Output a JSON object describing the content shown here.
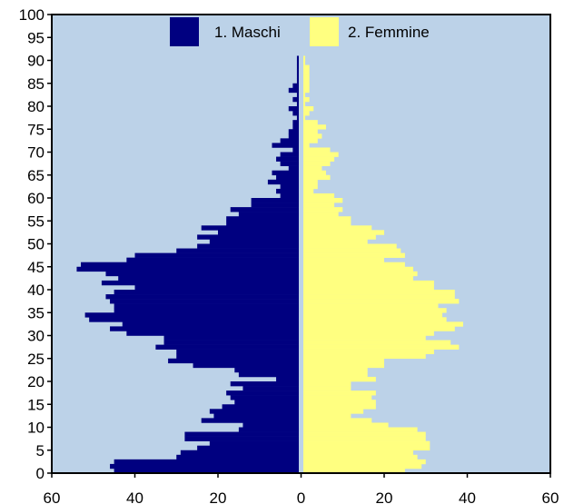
{
  "chart_data": {
    "type": "bar",
    "orientation": "horizontal",
    "subtype": "population-pyramid",
    "title": "",
    "xlabel": "",
    "ylabel": "",
    "xlim": [
      -60,
      60
    ],
    "ylim": [
      0,
      100
    ],
    "x_ticks": [
      -60,
      -40,
      -20,
      0,
      20,
      40,
      60
    ],
    "x_tick_labels": [
      "60",
      "40",
      "20",
      "0",
      "20",
      "40",
      "60"
    ],
    "y_ticks": [
      0,
      5,
      10,
      15,
      20,
      25,
      30,
      35,
      40,
      45,
      50,
      55,
      60,
      65,
      70,
      75,
      80,
      85,
      90,
      95,
      100
    ],
    "y_tick_labels": [
      "0",
      "5",
      "10",
      "15",
      "20",
      "25",
      "30",
      "35",
      "40",
      "45",
      "50",
      "55",
      "60",
      "65",
      "70",
      "75",
      "80",
      "85",
      "90",
      "95",
      "100"
    ],
    "grid": false,
    "legend": "top-center",
    "background_color": "#bcd2e8",
    "categories": [
      0,
      1,
      2,
      3,
      4,
      5,
      6,
      7,
      8,
      9,
      10,
      11,
      12,
      13,
      14,
      15,
      16,
      17,
      18,
      19,
      20,
      21,
      22,
      23,
      24,
      25,
      26,
      27,
      28,
      29,
      30,
      31,
      32,
      33,
      34,
      35,
      36,
      37,
      38,
      39,
      40,
      41,
      42,
      43,
      44,
      45,
      46,
      47,
      48,
      49,
      50,
      51,
      52,
      53,
      54,
      55,
      56,
      57,
      58,
      59,
      60,
      61,
      62,
      63,
      64,
      65,
      66,
      67,
      68,
      69,
      70,
      71,
      72,
      73,
      74,
      75,
      76,
      77,
      78,
      79,
      80,
      81,
      82,
      83,
      84,
      85,
      86,
      87,
      88,
      89,
      90
    ],
    "series": [
      {
        "name": "1. Maschi",
        "color": "#000080",
        "side": "left",
        "values": [
          45,
          46,
          45,
          30,
          29,
          25,
          22,
          28,
          28,
          15,
          14,
          24,
          21,
          22,
          19,
          16,
          17,
          18,
          14,
          17,
          6,
          15,
          16,
          26,
          32,
          30,
          30,
          35,
          33,
          33,
          42,
          46,
          43,
          51,
          52,
          45,
          45,
          46,
          47,
          45,
          40,
          48,
          44,
          47,
          54,
          53,
          42,
          40,
          30,
          25,
          22,
          25,
          20,
          24,
          18,
          18,
          15,
          17,
          12,
          12,
          5,
          6,
          5,
          8,
          6,
          7,
          3,
          5,
          6,
          5,
          2,
          7,
          5,
          3,
          3,
          2,
          2,
          1,
          2,
          3,
          1,
          2,
          1,
          3,
          2,
          1,
          1,
          1,
          1,
          1,
          1
        ]
      },
      {
        "name": "2. Femmine",
        "color": "#ffff80",
        "side": "right",
        "values": [
          25,
          29,
          30,
          28,
          27,
          31,
          31,
          30,
          30,
          28,
          21,
          17,
          12,
          15,
          18,
          18,
          17,
          18,
          12,
          12,
          18,
          16,
          16,
          20,
          20,
          30,
          32,
          38,
          36,
          30,
          32,
          37,
          39,
          35,
          34,
          35,
          33,
          38,
          37,
          37,
          32,
          32,
          27,
          28,
          27,
          25,
          20,
          25,
          24,
          23,
          16,
          18,
          20,
          17,
          12,
          12,
          9,
          10,
          8,
          10,
          8,
          3,
          4,
          4,
          7,
          6,
          5,
          7,
          8,
          9,
          7,
          2,
          4,
          5,
          4,
          6,
          4,
          1,
          2,
          3,
          1,
          2,
          1,
          2,
          2,
          2,
          2,
          2,
          2,
          1,
          1
        ]
      }
    ]
  }
}
